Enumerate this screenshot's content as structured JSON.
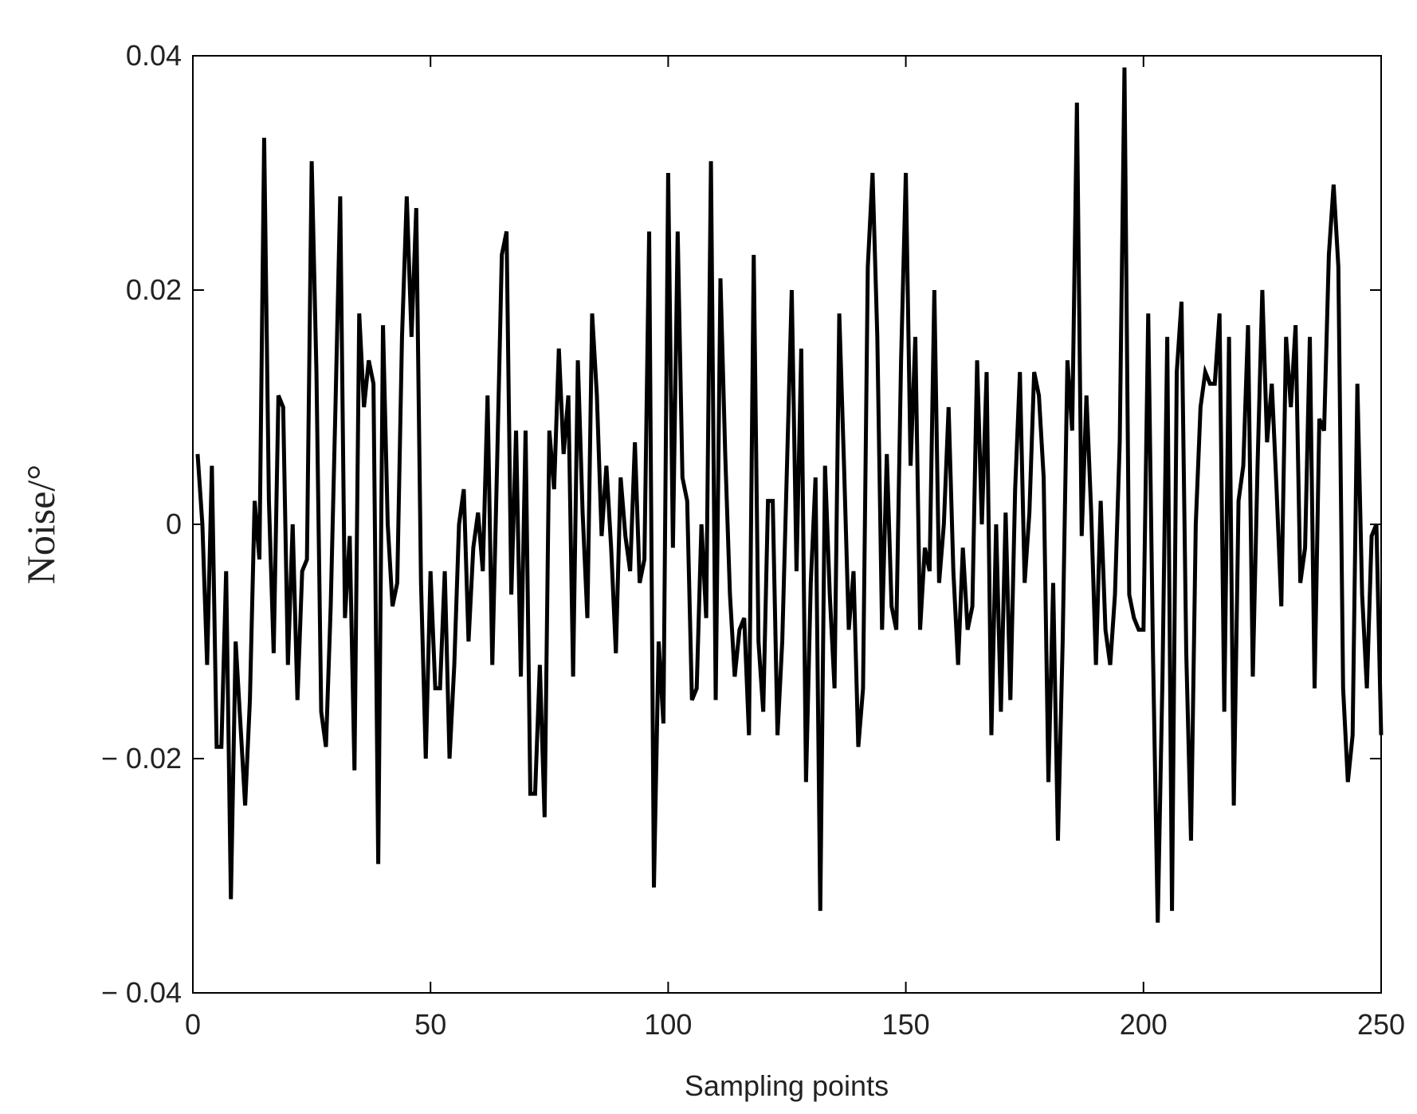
{
  "chart_data": {
    "type": "line",
    "xlabel": "Sampling points",
    "ylabel": "Noise/°",
    "xlim": [
      0,
      250
    ],
    "xticks": [
      0,
      50,
      100,
      150,
      200,
      250
    ],
    "ylim": [
      -0.04,
      0.04
    ],
    "yticks": [
      {
        "value": -0.04,
        "label": "− 0.04"
      },
      {
        "value": -0.02,
        "label": "− 0.02"
      },
      0,
      0.02,
      0.04
    ],
    "grid": false,
    "x": [
      1,
      2,
      3,
      4,
      5,
      6,
      7,
      8,
      9,
      10,
      11,
      12,
      13,
      14,
      15,
      16,
      17,
      18,
      19,
      20,
      21,
      22,
      23,
      24,
      25,
      26,
      27,
      28,
      29,
      30,
      31,
      32,
      33,
      34,
      35,
      36,
      37,
      38,
      39,
      40,
      41,
      42,
      43,
      44,
      45,
      46,
      47,
      48,
      49,
      50,
      51,
      52,
      53,
      54,
      55,
      56,
      57,
      58,
      59,
      60,
      61,
      62,
      63,
      64,
      65,
      66,
      67,
      68,
      69,
      70,
      71,
      72,
      73,
      74,
      75,
      76,
      77,
      78,
      79,
      80,
      81,
      82,
      83,
      84,
      85,
      86,
      87,
      88,
      89,
      90,
      91,
      92,
      93,
      94,
      95,
      96,
      97,
      98,
      99,
      100,
      101,
      102,
      103,
      104,
      105,
      106,
      107,
      108,
      109,
      110,
      111,
      112,
      113,
      114,
      115,
      116,
      117,
      118,
      119,
      120,
      121,
      122,
      123,
      124,
      125,
      126,
      127,
      128,
      129,
      130,
      131,
      132,
      133,
      134,
      135,
      136,
      137,
      138,
      139,
      140,
      141,
      142,
      143,
      144,
      145,
      146,
      147,
      148,
      149,
      150,
      151,
      152,
      153,
      154,
      155,
      156,
      157,
      158,
      159,
      160,
      161,
      162,
      163,
      164,
      165,
      166,
      167,
      168,
      169,
      170,
      171,
      172,
      173,
      174,
      175,
      176,
      177,
      178,
      179,
      180,
      181,
      182,
      183,
      184,
      185,
      186,
      187,
      188,
      189,
      190,
      191,
      192,
      193,
      194,
      195,
      196,
      197,
      198,
      199,
      200,
      201,
      202,
      203,
      204,
      205,
      206,
      207,
      208,
      209,
      210,
      211,
      212,
      213,
      214,
      215,
      216,
      217,
      218,
      219,
      220,
      221,
      222,
      223,
      224,
      225,
      226,
      227,
      228,
      229,
      230,
      231,
      232,
      233,
      234,
      235,
      236,
      237,
      238,
      239,
      240,
      241,
      242,
      243,
      244,
      245,
      246,
      247,
      248,
      249,
      250
    ],
    "series": [
      {
        "color": "#000000",
        "values": [
          0.006,
          0.0,
          -0.012,
          0.005,
          -0.019,
          -0.019,
          -0.004,
          -0.032,
          -0.01,
          -0.017,
          -0.024,
          -0.015,
          0.002,
          -0.003,
          0.033,
          0.002,
          -0.011,
          0.011,
          0.01,
          -0.012,
          0.0,
          -0.015,
          -0.004,
          -0.003,
          0.031,
          0.013,
          -0.016,
          -0.019,
          -0.007,
          0.01,
          0.028,
          -0.008,
          -0.001,
          -0.021,
          0.018,
          0.01,
          0.014,
          0.012,
          -0.029,
          0.017,
          0.0,
          -0.007,
          -0.005,
          0.016,
          0.028,
          0.016,
          0.027,
          -0.005,
          -0.02,
          -0.004,
          -0.014,
          -0.014,
          -0.004,
          -0.02,
          -0.012,
          0.0,
          0.003,
          -0.01,
          -0.002,
          0.001,
          -0.004,
          0.011,
          -0.012,
          0.005,
          0.023,
          0.025,
          -0.006,
          0.008,
          -0.013,
          0.008,
          -0.023,
          -0.023,
          -0.012,
          -0.025,
          0.008,
          0.003,
          0.015,
          0.006,
          0.011,
          -0.013,
          0.014,
          0.001,
          -0.008,
          0.018,
          0.011,
          -0.001,
          0.005,
          -0.002,
          -0.011,
          0.004,
          -0.001,
          -0.004,
          0.007,
          -0.005,
          -0.003,
          0.025,
          -0.031,
          -0.01,
          -0.017,
          0.03,
          -0.002,
          0.025,
          0.004,
          0.002,
          -0.015,
          -0.014,
          0.0,
          -0.008,
          0.031,
          -0.015,
          0.021,
          0.006,
          -0.006,
          -0.013,
          -0.009,
          -0.008,
          -0.018,
          0.023,
          -0.01,
          -0.016,
          0.002,
          0.002,
          -0.018,
          -0.01,
          0.005,
          0.02,
          -0.004,
          0.015,
          -0.022,
          -0.005,
          0.004,
          -0.033,
          0.005,
          -0.006,
          -0.014,
          0.018,
          0.005,
          -0.009,
          -0.004,
          -0.019,
          -0.014,
          0.022,
          0.03,
          0.016,
          -0.009,
          0.006,
          -0.007,
          -0.009,
          0.014,
          0.03,
          0.005,
          0.016,
          -0.009,
          -0.002,
          -0.004,
          0.02,
          -0.005,
          0.0,
          0.01,
          -0.004,
          -0.012,
          -0.002,
          -0.009,
          -0.007,
          0.014,
          0.0,
          0.013,
          -0.018,
          0.0,
          -0.016,
          0.001,
          -0.015,
          0.003,
          0.013,
          -0.005,
          0.001,
          0.013,
          0.011,
          0.004,
          -0.022,
          -0.005,
          -0.027,
          -0.01,
          0.014,
          0.008,
          0.036,
          -0.001,
          0.011,
          0.001,
          -0.012,
          0.002,
          -0.009,
          -0.012,
          -0.006,
          0.007,
          0.039,
          -0.006,
          -0.008,
          -0.009,
          -0.009,
          0.018,
          -0.011,
          -0.034,
          -0.013,
          0.016,
          -0.033,
          0.013,
          0.019,
          -0.011,
          -0.027,
          0.0,
          0.01,
          0.013,
          0.012,
          0.012,
          0.018,
          -0.016,
          0.016,
          -0.024,
          0.002,
          0.005,
          0.017,
          -0.013,
          0.005,
          0.02,
          0.007,
          0.012,
          0.003,
          -0.007,
          0.016,
          0.01,
          0.017,
          -0.005,
          -0.002,
          0.016,
          -0.014,
          0.009,
          0.008,
          0.023,
          0.029,
          0.022,
          -0.014,
          -0.022,
          -0.018,
          0.012,
          -0.006,
          -0.014,
          -0.001,
          0.0,
          -0.018
        ]
      }
    ]
  }
}
